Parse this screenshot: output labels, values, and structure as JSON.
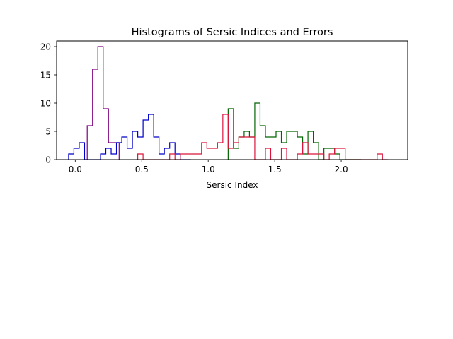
{
  "chart_data": {
    "type": "histogram",
    "title": "Histograms of Sersic Indices and Errors",
    "xlabel": "Sersic Index",
    "ylabel": "",
    "xlim": [
      -0.14,
      2.5
    ],
    "ylim": [
      0,
      21
    ],
    "xticks": [
      0.0,
      0.5,
      1.0,
      1.5,
      2.0
    ],
    "xtick_labels": [
      "0.0",
      "0.5",
      "1.0",
      "1.5",
      "2.0"
    ],
    "yticks": [
      0,
      5,
      10,
      15,
      20
    ],
    "ytick_labels": [
      "0",
      "5",
      "10",
      "15",
      "20"
    ],
    "grid": false,
    "legend": "none",
    "histtype": "step",
    "series": [
      {
        "color": "#800080",
        "bin_edges": [
          0.09,
          0.13,
          0.17,
          0.21,
          0.25,
          0.29,
          0.33
        ],
        "counts": [
          6,
          16,
          20,
          9,
          3,
          3
        ]
      },
      {
        "color": "#0000cc",
        "bin_edges": [
          -0.05,
          -0.01,
          0.03,
          0.07,
          0.11,
          0.15,
          0.19,
          0.23,
          0.27,
          0.31,
          0.35,
          0.39,
          0.43,
          0.47,
          0.51,
          0.55,
          0.59,
          0.63,
          0.67,
          0.71,
          0.75,
          0.79,
          0.83,
          0.87
        ],
        "counts": [
          1,
          2,
          3,
          0,
          0,
          0,
          1,
          2,
          1,
          3,
          4,
          2,
          5,
          4,
          7,
          8,
          4,
          1,
          2,
          3,
          1,
          0,
          0
        ]
      },
      {
        "color": "#006400",
        "bin_edges": [
          1.15,
          1.19,
          1.23,
          1.27,
          1.31,
          1.35,
          1.39,
          1.43,
          1.47,
          1.51,
          1.55,
          1.59,
          1.63,
          1.67,
          1.71,
          1.75,
          1.79,
          1.83,
          1.87,
          1.91,
          1.95,
          1.99,
          2.03,
          2.07,
          2.11,
          2.15
        ],
        "counts": [
          9,
          2,
          4,
          5,
          4,
          10,
          6,
          4,
          4,
          5,
          3,
          5,
          5,
          4,
          1,
          5,
          3,
          0,
          2,
          2,
          1,
          0,
          0,
          0,
          0
        ]
      },
      {
        "color": "#dc143c",
        "bin_edges": [
          0.47,
          0.51,
          0.55,
          0.59,
          0.63,
          0.67,
          0.71,
          0.75,
          0.79,
          0.83,
          0.87,
          0.91,
          0.95,
          0.99,
          1.03,
          1.07,
          1.11,
          1.15,
          1.19,
          1.23,
          1.27,
          1.31,
          1.35,
          1.39,
          1.43,
          1.47,
          1.51,
          1.55,
          1.59,
          1.63,
          1.67,
          1.71,
          1.75,
          1.79,
          1.83,
          1.87,
          1.91,
          1.95,
          1.99,
          2.03,
          2.07,
          2.11,
          2.15,
          2.19,
          2.23,
          2.27,
          2.31,
          2.35
        ],
        "counts": [
          1,
          0,
          0,
          0,
          0,
          0,
          1,
          0,
          1,
          1,
          1,
          1,
          3,
          2,
          2,
          3,
          8,
          2,
          3,
          4,
          4,
          4,
          0,
          0,
          2,
          0,
          0,
          2,
          0,
          0,
          1,
          3,
          1,
          1,
          1,
          0,
          1,
          2,
          2,
          0,
          0,
          0,
          0,
          0,
          0,
          1,
          0
        ]
      }
    ]
  }
}
